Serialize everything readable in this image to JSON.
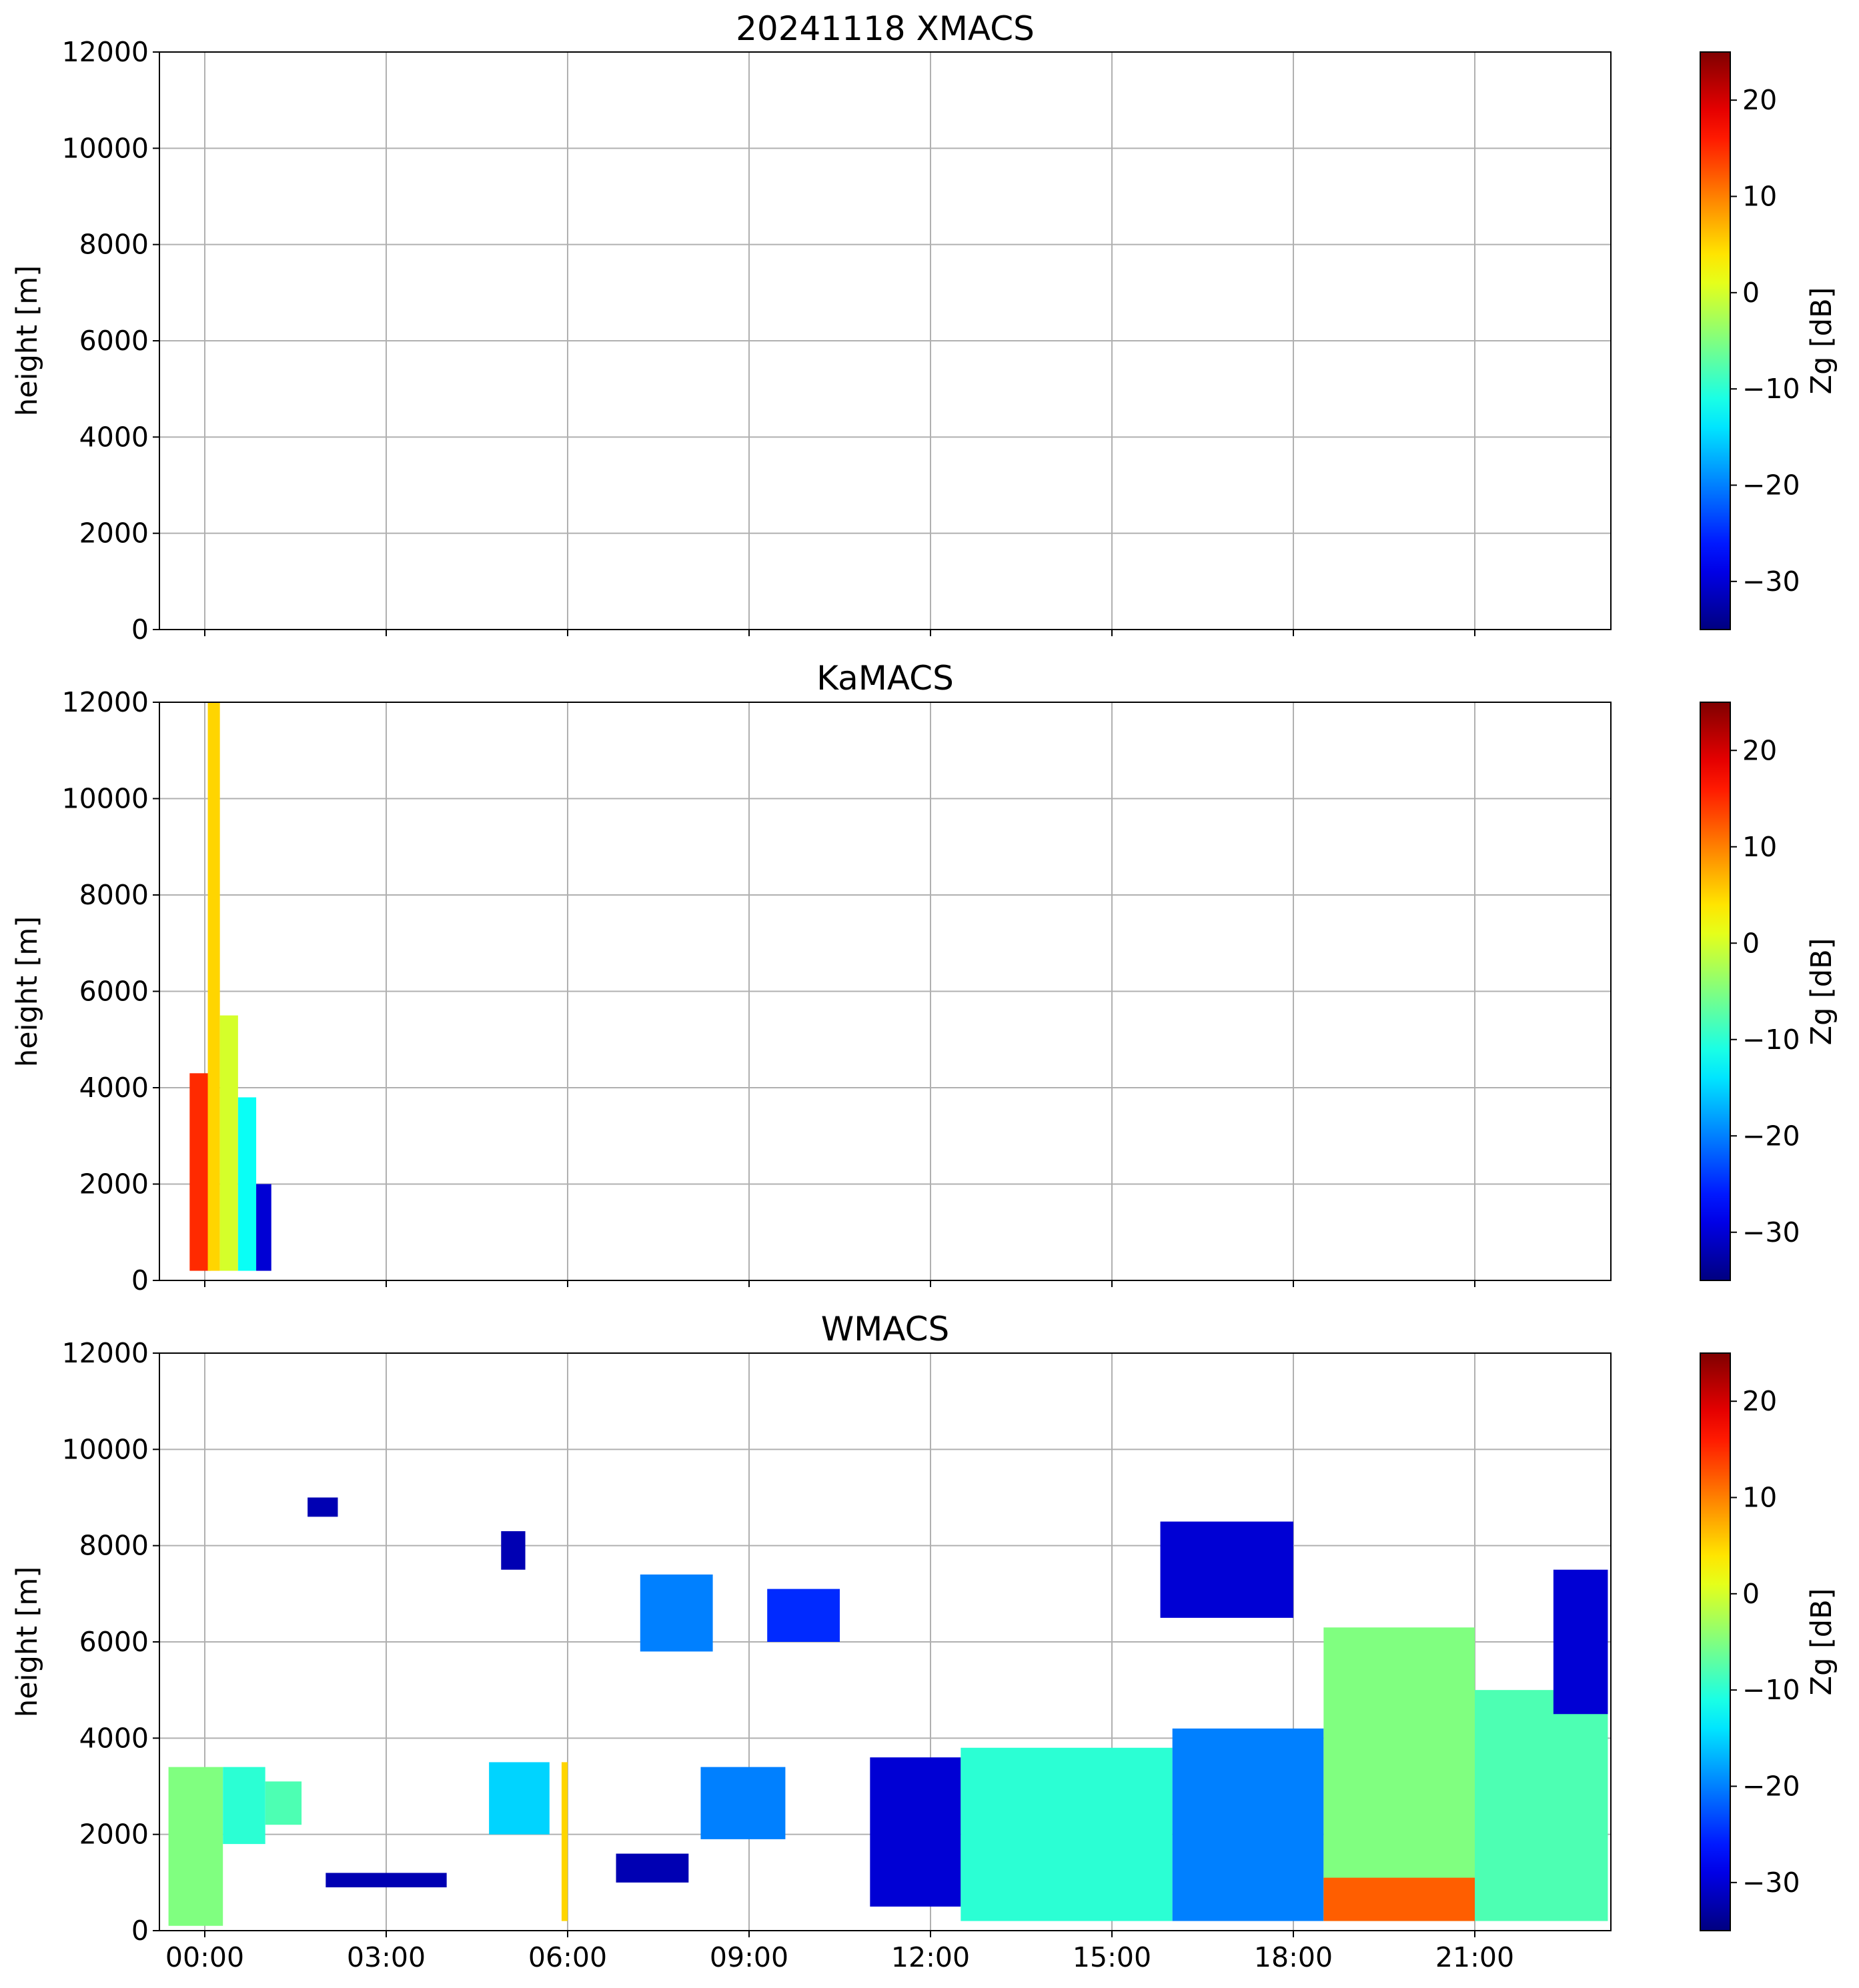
{
  "chart_data": [
    {
      "type": "heatmap",
      "title": "20241118 XMACS",
      "xlabel": "",
      "ylabel": "height [m]",
      "xticklabels": [],
      "ylim": [
        0,
        12000
      ],
      "yticks": [
        0,
        2000,
        4000,
        6000,
        8000,
        10000,
        12000
      ],
      "grid": true,
      "colorbar": {
        "label": "Zg [dB]",
        "colormap": "jet",
        "range": [
          -35,
          25
        ],
        "ticks": [
          -30,
          -20,
          -10,
          0,
          10,
          20
        ]
      },
      "echoes": []
    },
    {
      "type": "heatmap",
      "title": "KaMACS",
      "xlabel": "",
      "ylabel": "height [m]",
      "xticklabels": [],
      "ylim": [
        0,
        12000
      ],
      "yticks": [
        0,
        2000,
        4000,
        6000,
        8000,
        10000,
        12000
      ],
      "grid": true,
      "colorbar": {
        "label": "Zg [dB]",
        "colormap": "jet",
        "range": [
          -35,
          25
        ],
        "ticks": [
          -30,
          -20,
          -10,
          0,
          10,
          20
        ]
      },
      "echoes": [
        {
          "t0": -0.25,
          "t1": 0.1,
          "hbot": 200,
          "htop": 4300,
          "zg": 15
        },
        {
          "t0": 0.05,
          "t1": 0.25,
          "hbot": 200,
          "htop": 12000,
          "zg": 5
        },
        {
          "t0": 0.25,
          "t1": 0.55,
          "hbot": 200,
          "htop": 5500,
          "zg": 0
        },
        {
          "t0": 0.55,
          "t1": 0.85,
          "hbot": 200,
          "htop": 3800,
          "zg": -12
        },
        {
          "t0": 0.85,
          "t1": 1.1,
          "hbot": 200,
          "htop": 2000,
          "zg": -30
        }
      ]
    },
    {
      "type": "heatmap",
      "title": "WMACS",
      "xlabel": "",
      "ylabel": "height [m]",
      "xticklabels": [
        "00:00",
        "03:00",
        "06:00",
        "09:00",
        "12:00",
        "15:00",
        "18:00",
        "21:00"
      ],
      "xrange_hours": [
        -0.75,
        23.25
      ],
      "ylim": [
        0,
        12000
      ],
      "yticks": [
        0,
        2000,
        4000,
        6000,
        8000,
        10000,
        12000
      ],
      "grid": true,
      "colorbar": {
        "label": "Zg [dB]",
        "colormap": "jet",
        "range": [
          -35,
          25
        ],
        "ticks": [
          -30,
          -20,
          -10,
          0,
          10,
          20
        ]
      },
      "echoes": [
        {
          "t0": -0.6,
          "t1": 0.3,
          "hbot": 100,
          "htop": 3400,
          "zg": -5
        },
        {
          "t0": 0.3,
          "t1": 1.0,
          "hbot": 1800,
          "htop": 3400,
          "zg": -10
        },
        {
          "t0": 1.0,
          "t1": 1.6,
          "hbot": 2200,
          "htop": 3100,
          "zg": -8
        },
        {
          "t0": 1.7,
          "t1": 2.2,
          "hbot": 8600,
          "htop": 9000,
          "zg": -32
        },
        {
          "t0": 2.0,
          "t1": 4.0,
          "hbot": 900,
          "htop": 1200,
          "zg": -32
        },
        {
          "t0": 4.7,
          "t1": 5.7,
          "hbot": 2000,
          "htop": 3500,
          "zg": -15
        },
        {
          "t0": 5.9,
          "t1": 6.0,
          "hbot": 200,
          "htop": 3500,
          "zg": 5
        },
        {
          "t0": 4.9,
          "t1": 5.3,
          "hbot": 7500,
          "htop": 8300,
          "zg": -32
        },
        {
          "t0": 7.2,
          "t1": 8.4,
          "hbot": 5800,
          "htop": 7400,
          "zg": -20
        },
        {
          "t0": 6.8,
          "t1": 8.0,
          "hbot": 1000,
          "htop": 1600,
          "zg": -32
        },
        {
          "t0": 8.2,
          "t1": 9.6,
          "hbot": 1900,
          "htop": 3400,
          "zg": -20
        },
        {
          "t0": 9.3,
          "t1": 10.5,
          "hbot": 6000,
          "htop": 7100,
          "zg": -25
        },
        {
          "t0": 11.0,
          "t1": 12.5,
          "hbot": 500,
          "htop": 3600,
          "zg": -30
        },
        {
          "t0": 12.5,
          "t1": 16.0,
          "hbot": 200,
          "htop": 3800,
          "zg": -10
        },
        {
          "t0": 15.8,
          "t1": 18.0,
          "hbot": 6500,
          "htop": 8500,
          "zg": -30
        },
        {
          "t0": 16.0,
          "t1": 18.5,
          "hbot": 200,
          "htop": 4200,
          "zg": -20
        },
        {
          "t0": 18.5,
          "t1": 21.0,
          "hbot": 200,
          "htop": 6300,
          "zg": -5
        },
        {
          "t0": 18.5,
          "t1": 21.0,
          "hbot": 200,
          "htop": 1100,
          "zg": 12
        },
        {
          "t0": 21.0,
          "t1": 23.2,
          "hbot": 200,
          "htop": 5000,
          "zg": -8
        },
        {
          "t0": 22.3,
          "t1": 23.2,
          "hbot": 4500,
          "htop": 7500,
          "zg": -30
        }
      ]
    }
  ]
}
